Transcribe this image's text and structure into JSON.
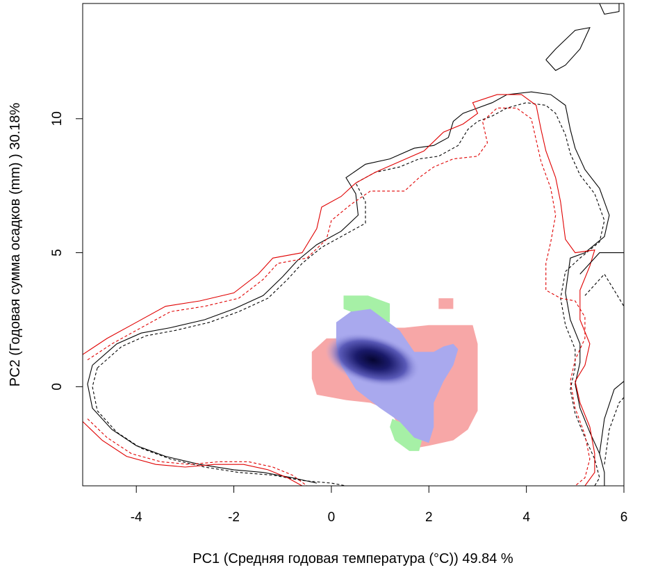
{
  "chart_data": {
    "type": "scatter",
    "title": "",
    "xlabel": "PC1 (Средняя годовая температура (°C)) 49.84 %",
    "ylabel": "PC2 (Годовая сумма осадков  (mm) ) 30.18%",
    "xlim": [
      -5.1,
      6
    ],
    "ylim": [
      -3.7,
      14.3
    ],
    "x_ticks": [
      {
        "value": -4,
        "label": "-4"
      },
      {
        "value": -2,
        "label": "-2"
      },
      {
        "value": 0,
        "label": "0"
      },
      {
        "value": 2,
        "label": "2"
      },
      {
        "value": 4,
        "label": "4"
      },
      {
        "value": 6,
        "label": "6"
      }
    ],
    "y_ticks": [
      {
        "value": 0,
        "label": "0"
      },
      {
        "value": 5,
        "label": "5"
      },
      {
        "value": 10,
        "label": "10"
      }
    ],
    "grid": false,
    "legend": "none",
    "colors": {
      "contour_black": "#000000",
      "contour_red": "#e00000",
      "overlap_only_a": "#f7a7a7",
      "overlap_only_b": "#a6f0a6",
      "overlap_both_light": "#a9a9ee",
      "overlap_both_dark": "#0a0a4a"
    },
    "density_regions": {
      "pink": [
        [
          0.3,
          1.8
        ],
        [
          0.6,
          2.0
        ],
        [
          1.0,
          2.2
        ],
        [
          1.5,
          2.2
        ],
        [
          2.0,
          2.3
        ],
        [
          2.5,
          2.3
        ],
        [
          2.9,
          2.3
        ],
        [
          3.0,
          1.6
        ],
        [
          3.0,
          0.4
        ],
        [
          3.0,
          -0.9
        ],
        [
          2.8,
          -1.6
        ],
        [
          2.5,
          -2.0
        ],
        [
          2.0,
          -2.2
        ],
        [
          1.7,
          -2.3
        ],
        [
          1.5,
          -1.8
        ],
        [
          1.2,
          -0.9
        ],
        [
          0.8,
          -0.6
        ],
        [
          0.3,
          -0.5
        ],
        [
          -0.3,
          -0.3
        ],
        [
          -0.4,
          0.3
        ],
        [
          -0.4,
          1.3
        ],
        [
          -0.1,
          1.8
        ]
      ],
      "pink_island": [
        [
          2.2,
          3.3
        ],
        [
          2.5,
          3.3
        ],
        [
          2.5,
          2.9
        ],
        [
          2.2,
          2.9
        ]
      ],
      "green": [
        [
          0.25,
          3.4
        ],
        [
          0.75,
          3.4
        ],
        [
          1.2,
          3.1
        ],
        [
          1.2,
          2.4
        ],
        [
          0.7,
          2.6
        ],
        [
          0.25,
          2.9
        ]
      ],
      "green_bottom": [
        [
          1.25,
          -1.2
        ],
        [
          1.9,
          -1.7
        ],
        [
          1.8,
          -2.4
        ],
        [
          1.6,
          -2.4
        ],
        [
          1.3,
          -2.0
        ],
        [
          1.2,
          -1.5
        ]
      ],
      "blue": [
        [
          0.1,
          2.4
        ],
        [
          0.4,
          2.8
        ],
        [
          0.8,
          2.9
        ],
        [
          1.1,
          2.5
        ],
        [
          1.4,
          2.1
        ],
        [
          1.7,
          1.3
        ],
        [
          2.1,
          1.3
        ],
        [
          2.3,
          1.5
        ],
        [
          2.5,
          1.6
        ],
        [
          2.6,
          1.4
        ],
        [
          2.5,
          0.8
        ],
        [
          2.3,
          0.2
        ],
        [
          2.1,
          -0.6
        ],
        [
          2.1,
          -1.5
        ],
        [
          2.0,
          -2.1
        ],
        [
          1.7,
          -1.9
        ],
        [
          1.4,
          -1.3
        ],
        [
          1.0,
          -0.8
        ],
        [
          0.5,
          -0.1
        ],
        [
          0.2,
          0.8
        ],
        [
          0.1,
          1.6
        ]
      ],
      "dark_core": {
        "x": 0.85,
        "y": 1.0
      }
    },
    "contours": [
      {
        "color": "black",
        "dash": "solid",
        "points": [
          [
            -4.9,
            0.8
          ],
          [
            -4.4,
            1.6
          ],
          [
            -3.9,
            2.0
          ],
          [
            -3.3,
            2.2
          ],
          [
            -2.6,
            2.5
          ],
          [
            -2.0,
            2.9
          ],
          [
            -1.4,
            3.4
          ],
          [
            -1.0,
            4.1
          ],
          [
            -0.7,
            4.7
          ],
          [
            -0.3,
            5.3
          ],
          [
            0.2,
            5.8
          ],
          [
            0.55,
            6.4
          ],
          [
            0.5,
            7.2
          ],
          [
            0.3,
            7.8
          ],
          [
            0.7,
            8.3
          ],
          [
            1.2,
            8.5
          ],
          [
            1.7,
            8.9
          ],
          [
            2.1,
            9.0
          ],
          [
            2.4,
            9.3
          ],
          [
            2.5,
            9.9
          ],
          [
            2.7,
            10.2
          ],
          [
            3.0,
            10.4
          ],
          [
            3.3,
            10.6
          ],
          [
            3.6,
            10.9
          ],
          [
            4.1,
            11.0
          ],
          [
            4.5,
            10.9
          ],
          [
            4.8,
            10.5
          ],
          [
            4.9,
            9.6
          ],
          [
            5.0,
            8.9
          ],
          [
            5.2,
            8.1
          ],
          [
            5.5,
            7.4
          ],
          [
            5.7,
            6.4
          ],
          [
            5.6,
            5.6
          ],
          [
            5.2,
            5.0
          ],
          [
            4.9,
            4.8
          ],
          [
            4.8,
            3.5
          ],
          [
            4.9,
            2.5
          ],
          [
            5.1,
            1.6
          ],
          [
            5.1,
            0.9
          ],
          [
            5.0,
            0.1
          ],
          [
            5.1,
            -0.8
          ],
          [
            5.3,
            -1.7
          ],
          [
            5.5,
            -2.5
          ],
          [
            5.6,
            -3.2
          ],
          [
            5.6,
            -3.7
          ]
        ]
      },
      {
        "color": "black",
        "dash": "solid",
        "points": [
          [
            -4.9,
            0.8
          ],
          [
            -5.0,
            0.1
          ],
          [
            -4.9,
            -0.8
          ],
          [
            -4.5,
            -1.6
          ],
          [
            -4.0,
            -2.2
          ],
          [
            -3.4,
            -2.6
          ],
          [
            -2.7,
            -2.9
          ],
          [
            -2.0,
            -3.1
          ],
          [
            -1.4,
            -3.2
          ],
          [
            -0.8,
            -3.4
          ],
          [
            -0.3,
            -3.6
          ]
        ]
      },
      {
        "color": "black",
        "dash": "dashed",
        "points": [
          [
            -4.8,
            0.7
          ],
          [
            -4.3,
            1.5
          ],
          [
            -3.8,
            1.9
          ],
          [
            -3.2,
            2.1
          ],
          [
            -2.5,
            2.4
          ],
          [
            -1.9,
            2.8
          ],
          [
            -1.3,
            3.3
          ],
          [
            -0.9,
            4.0
          ],
          [
            -0.6,
            4.6
          ],
          [
            -0.2,
            5.2
          ],
          [
            0.3,
            5.7
          ],
          [
            0.7,
            6.1
          ],
          [
            0.7,
            6.9
          ],
          [
            0.5,
            7.6
          ],
          [
            0.9,
            8.0
          ],
          [
            1.4,
            8.2
          ],
          [
            1.8,
            8.5
          ],
          [
            2.2,
            8.6
          ],
          [
            2.6,
            9.0
          ],
          [
            2.8,
            9.6
          ],
          [
            3.0,
            9.9
          ],
          [
            3.3,
            10.1
          ],
          [
            3.6,
            10.4
          ],
          [
            4.0,
            10.6
          ],
          [
            4.4,
            10.5
          ],
          [
            4.6,
            10.2
          ],
          [
            4.8,
            9.4
          ],
          [
            4.9,
            8.7
          ],
          [
            5.1,
            7.9
          ],
          [
            5.4,
            7.2
          ],
          [
            5.6,
            6.2
          ],
          [
            5.5,
            5.4
          ],
          [
            5.1,
            4.8
          ],
          [
            4.8,
            4.3
          ],
          [
            4.7,
            3.3
          ],
          [
            4.8,
            2.3
          ],
          [
            5.0,
            1.4
          ],
          [
            5.0,
            0.7
          ],
          [
            4.9,
            -0.1
          ],
          [
            5.0,
            -1.0
          ],
          [
            5.2,
            -1.9
          ],
          [
            5.4,
            -2.7
          ],
          [
            5.5,
            -3.4
          ],
          [
            5.4,
            -3.7
          ]
        ]
      },
      {
        "color": "black",
        "dash": "dashed",
        "points": [
          [
            -4.8,
            0.7
          ],
          [
            -4.9,
            0.0
          ],
          [
            -4.8,
            -0.9
          ],
          [
            -4.4,
            -1.7
          ],
          [
            -3.9,
            -2.3
          ],
          [
            -3.3,
            -2.7
          ],
          [
            -2.6,
            -3.0
          ],
          [
            -1.9,
            -3.2
          ],
          [
            -1.2,
            -3.3
          ],
          [
            -0.6,
            -3.5
          ],
          [
            0.0,
            -3.6
          ],
          [
            0.3,
            -3.7
          ]
        ]
      },
      {
        "color": "red",
        "dash": "solid",
        "points": [
          [
            -5.1,
            1.2
          ],
          [
            -4.6,
            1.8
          ],
          [
            -4.0,
            2.4
          ],
          [
            -3.4,
            3.0
          ],
          [
            -2.7,
            3.2
          ],
          [
            -2.0,
            3.5
          ],
          [
            -1.5,
            4.2
          ],
          [
            -1.2,
            4.8
          ],
          [
            -0.6,
            5.0
          ],
          [
            -0.3,
            5.9
          ],
          [
            -0.2,
            6.7
          ],
          [
            0.2,
            7.1
          ],
          [
            0.5,
            7.6
          ],
          [
            0.9,
            8.0
          ],
          [
            1.4,
            8.4
          ],
          [
            1.9,
            8.8
          ],
          [
            2.3,
            9.5
          ],
          [
            2.7,
            9.8
          ],
          [
            3.0,
            10.2
          ],
          [
            2.9,
            10.6
          ],
          [
            3.4,
            10.9
          ],
          [
            3.9,
            10.9
          ],
          [
            4.2,
            10.5
          ],
          [
            4.3,
            9.6
          ],
          [
            4.4,
            8.8
          ],
          [
            4.6,
            7.8
          ],
          [
            4.7,
            6.9
          ],
          [
            4.8,
            5.5
          ],
          [
            5.0,
            5.0
          ],
          [
            5.4,
            5.1
          ],
          [
            5.3,
            4.5
          ],
          [
            5.1,
            3.6
          ],
          [
            5.1,
            2.5
          ],
          [
            5.3,
            1.6
          ],
          [
            5.2,
            0.8
          ],
          [
            5.0,
            0.2
          ],
          [
            5.1,
            -0.6
          ],
          [
            5.3,
            -1.5
          ],
          [
            5.4,
            -2.5
          ],
          [
            5.4,
            -3.2
          ],
          [
            5.2,
            -3.7
          ]
        ]
      },
      {
        "color": "red",
        "dash": "solid",
        "points": [
          [
            -5.1,
            -1.3
          ],
          [
            -4.7,
            -2.0
          ],
          [
            -4.2,
            -2.6
          ],
          [
            -3.6,
            -2.9
          ],
          [
            -3.0,
            -3.0
          ],
          [
            -2.4,
            -2.9
          ],
          [
            -1.8,
            -2.9
          ],
          [
            -1.3,
            -3.1
          ],
          [
            -0.9,
            -3.4
          ],
          [
            -0.6,
            -3.7
          ]
        ]
      },
      {
        "color": "red",
        "dash": "dashed",
        "points": [
          [
            -5.0,
            1.0
          ],
          [
            -4.5,
            1.6
          ],
          [
            -3.9,
            2.2
          ],
          [
            -3.3,
            2.8
          ],
          [
            -2.6,
            3.0
          ],
          [
            -1.9,
            3.3
          ],
          [
            -1.4,
            4.0
          ],
          [
            -1.1,
            4.6
          ],
          [
            -0.5,
            4.8
          ],
          [
            -0.1,
            5.5
          ],
          [
            0.0,
            6.2
          ],
          [
            0.4,
            6.8
          ],
          [
            0.8,
            7.3
          ],
          [
            1.2,
            7.3
          ],
          [
            1.5,
            7.3
          ],
          [
            1.8,
            7.8
          ],
          [
            2.1,
            8.2
          ],
          [
            2.5,
            8.5
          ],
          [
            3.0,
            8.6
          ],
          [
            3.2,
            9.1
          ],
          [
            3.1,
            9.9
          ],
          [
            3.4,
            10.4
          ],
          [
            3.8,
            10.4
          ],
          [
            4.1,
            10.0
          ],
          [
            4.2,
            9.2
          ],
          [
            4.3,
            8.4
          ],
          [
            4.5,
            7.4
          ],
          [
            4.6,
            6.4
          ],
          [
            4.5,
            5.4
          ],
          [
            4.4,
            4.6
          ],
          [
            4.4,
            3.6
          ],
          [
            4.7,
            3.3
          ],
          [
            5.0,
            3.2
          ],
          [
            5.2,
            2.6
          ],
          [
            5.2,
            1.8
          ],
          [
            5.0,
            1.0
          ],
          [
            4.9,
            0.2
          ],
          [
            5.0,
            -0.8
          ],
          [
            5.2,
            -1.8
          ],
          [
            5.3,
            -2.7
          ],
          [
            5.2,
            -3.4
          ],
          [
            5.0,
            -3.7
          ]
        ]
      },
      {
        "color": "red",
        "dash": "dashed",
        "points": [
          [
            -5.0,
            -1.2
          ],
          [
            -4.6,
            -1.9
          ],
          [
            -4.1,
            -2.5
          ],
          [
            -3.5,
            -2.8
          ],
          [
            -2.9,
            -2.9
          ],
          [
            -2.3,
            -2.8
          ],
          [
            -1.7,
            -2.8
          ],
          [
            -1.2,
            -3.0
          ],
          [
            -0.8,
            -3.3
          ],
          [
            -0.5,
            -3.7
          ]
        ]
      },
      {
        "color": "black",
        "dash": "solid",
        "points": [
          [
            4.4,
            12.2
          ],
          [
            4.6,
            12.6
          ],
          [
            5.0,
            13.3
          ],
          [
            5.3,
            13.4
          ],
          [
            5.1,
            12.6
          ],
          [
            4.8,
            12.0
          ],
          [
            4.6,
            11.8
          ],
          [
            4.4,
            12.2
          ]
        ]
      },
      {
        "color": "black",
        "dash": "solid",
        "points": [
          [
            5.5,
            14.3
          ],
          [
            5.6,
            13.9
          ],
          [
            5.9,
            14.0
          ],
          [
            5.9,
            14.3
          ]
        ]
      },
      {
        "color": "black",
        "dash": "solid",
        "points": [
          [
            5.1,
            4.2
          ],
          [
            5.5,
            5.0
          ],
          [
            6.0,
            5.0
          ]
        ]
      },
      {
        "color": "black",
        "dash": "dashed",
        "points": [
          [
            5.2,
            3.4
          ],
          [
            5.6,
            4.2
          ],
          [
            6.0,
            3.0
          ]
        ]
      },
      {
        "color": "black",
        "dash": "solid",
        "points": [
          [
            5.5,
            -2.5
          ],
          [
            5.6,
            -1.2
          ],
          [
            5.8,
            -0.1
          ],
          [
            6.0,
            0.2
          ]
        ]
      },
      {
        "color": "black",
        "dash": "dashed",
        "points": [
          [
            5.6,
            -2.9
          ],
          [
            5.7,
            -1.6
          ],
          [
            5.9,
            -0.6
          ],
          [
            6.0,
            -0.4
          ]
        ]
      }
    ]
  }
}
